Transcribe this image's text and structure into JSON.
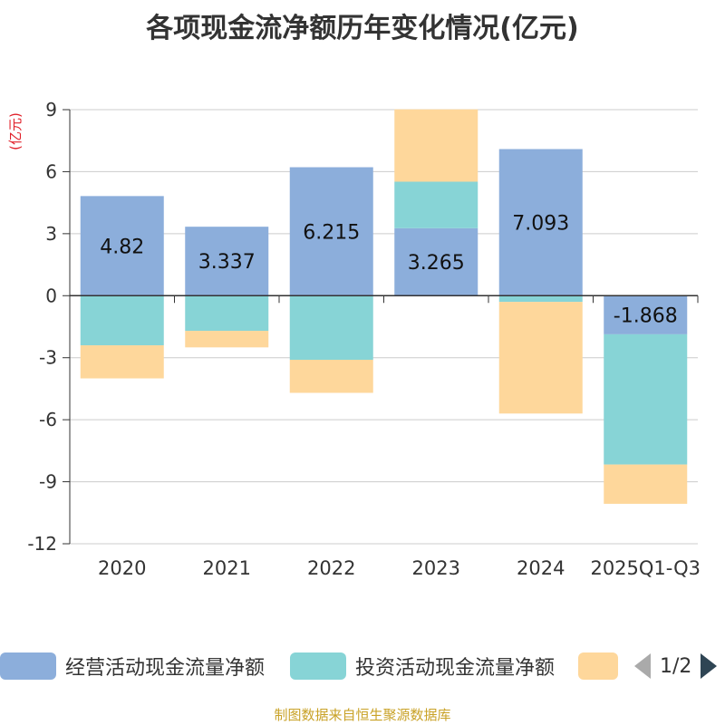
{
  "title": "各项现金流净额历年变化情况(亿元)",
  "footer": "制图数据来自恒生聚源数据库",
  "legend": {
    "items": [
      {
        "label": "经营活动现金流量净额",
        "color": "#8caedb"
      },
      {
        "label": "投资活动现金流量净额",
        "color": "#87d4d6"
      },
      {
        "label": "",
        "color": "#fed79b"
      }
    ],
    "page": "1/2"
  },
  "chart_data": {
    "type": "bar",
    "stacked": true,
    "title": "各项现金流净额历年变化情况(亿元)",
    "ylabel": "(亿元)",
    "ylim": [
      -12,
      9
    ],
    "yticks": [
      9,
      6,
      3,
      0,
      -3,
      -6,
      -9,
      -12
    ],
    "categories": [
      "2020",
      "2021",
      "2022",
      "2023",
      "2024",
      "2025Q1-Q3"
    ],
    "series": [
      {
        "name": "经营活动现金流量净额",
        "color": "#8caedb",
        "values": [
          4.82,
          3.337,
          6.215,
          3.265,
          7.093,
          -1.868
        ],
        "labels": [
          "4.82",
          "3.337",
          "6.215",
          "3.265",
          "7.093",
          "-1.868"
        ]
      },
      {
        "name": "投资活动现金流量净额",
        "color": "#87d4d6",
        "values": [
          -2.4,
          -1.7,
          -3.1,
          2.25,
          -0.3,
          -6.3
        ]
      },
      {
        "name": "",
        "color": "#fed79b",
        "values": [
          -1.6,
          -0.8,
          -1.6,
          3.5,
          -5.4,
          -1.9
        ]
      }
    ]
  }
}
